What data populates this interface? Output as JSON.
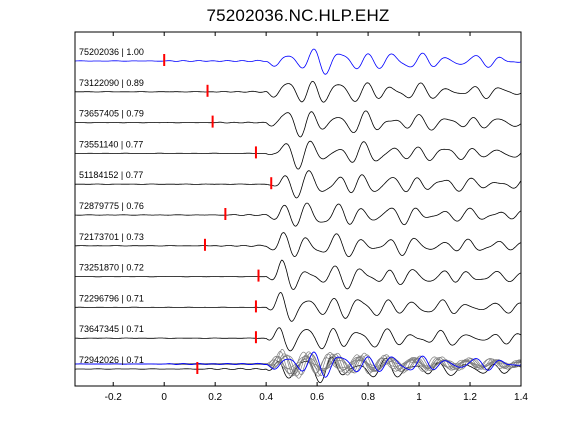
{
  "chart_data": {
    "type": "line",
    "title": "75202036.NC.HLP.EHZ",
    "xlabel": "",
    "ylabel": "",
    "xlim": [
      -0.35,
      1.4
    ],
    "x_ticks": [
      -0.2,
      0,
      0.2,
      0.4,
      0.6,
      0.8,
      1,
      1.2,
      1.4
    ],
    "x_tick_labels": [
      "-0.2",
      "0",
      "0.2",
      "0.4",
      "0.6",
      "0.8",
      "1",
      "1.2",
      "1.4"
    ],
    "grid": false,
    "colors": {
      "reference": "#0000ff",
      "trace": "#000000",
      "stack": "#808080",
      "pick": "#ff0000"
    },
    "series": [
      {
        "name": "75202036 | 1.00",
        "pick": 0.0,
        "reference": true
      },
      {
        "name": "73122090 | 0.89",
        "pick": 0.17
      },
      {
        "name": "73657405 | 0.79",
        "pick": 0.19
      },
      {
        "name": "73551140 | 0.77",
        "pick": 0.36
      },
      {
        "name": "51184152 | 0.77",
        "pick": 0.42
      },
      {
        "name": "72879775 | 0.76",
        "pick": 0.24
      },
      {
        "name": "72173701 | 0.73",
        "pick": 0.16
      },
      {
        "name": "73251870 | 0.72",
        "pick": 0.37
      },
      {
        "name": "72296796 | 0.71",
        "pick": 0.36
      },
      {
        "name": "73647345 | 0.71",
        "pick": 0.36
      },
      {
        "name": "72942026 | 0.71",
        "pick": 0.13
      }
    ]
  }
}
